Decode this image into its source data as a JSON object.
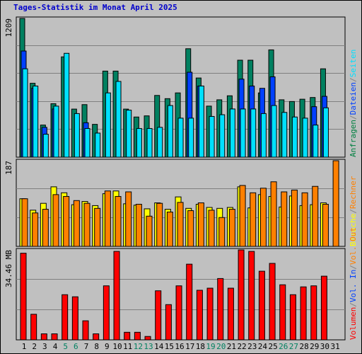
{
  "title": "Tages-Statistik im Monat April 2025",
  "chart_data": [
    {
      "type": "bar",
      "panel": "hits",
      "max_label": "1209",
      "ymax": 1209,
      "right_labels": [
        {
          "text": "Anfragen",
          "color": "#008040"
        },
        {
          "text": "/",
          "color": "#808080"
        },
        {
          "text": "Dateien",
          "color": "#0040ff"
        },
        {
          "text": "/",
          "color": "#808080"
        },
        {
          "text": "Seiten",
          "color": "#00e0ff"
        }
      ],
      "categories": [
        "1",
        "2",
        "3",
        "4",
        "5",
        "6",
        "7",
        "8",
        "9",
        "10",
        "11",
        "12",
        "13",
        "14",
        "15",
        "16",
        "17",
        "18",
        "19",
        "20",
        "21",
        "22",
        "23",
        "24",
        "25",
        "26",
        "27",
        "28",
        "29",
        "30",
        "31"
      ],
      "series": [
        {
          "key": "anfragen",
          "color": "#008060",
          "values": [
            1209,
            644,
            280,
            466,
            874,
            419,
            458,
            286,
            750,
            750,
            419,
            350,
            360,
            538,
            510,
            560,
            945,
            690,
            445,
            500,
            535,
            845,
            845,
            560,
            935,
            500,
            485,
            505,
            520,
            770,
            0
          ]
        },
        {
          "key": "dateien",
          "color": "#0040ff",
          "values": [
            925,
            600,
            260,
            420,
            0,
            0,
            300,
            0,
            0,
            0,
            0,
            0,
            0,
            0,
            0,
            0,
            740,
            620,
            0,
            0,
            0,
            680,
            620,
            600,
            700,
            0,
            0,
            0,
            440,
            530,
            0
          ]
        },
        {
          "key": "seiten",
          "color": "#00e0ff",
          "values": [
            770,
            620,
            200,
            445,
            905,
            380,
            250,
            210,
            560,
            660,
            410,
            250,
            250,
            260,
            450,
            340,
            340,
            620,
            355,
            370,
            420,
            420,
            420,
            380,
            450,
            390,
            350,
            340,
            280,
            430,
            0
          ]
        }
      ]
    },
    {
      "type": "bar",
      "panel": "visits",
      "max_label": "187",
      "ymax": 187,
      "right_labels": [
        {
          "text": "Besuche",
          "color": "#ffff00"
        },
        {
          "text": "/",
          "color": "#808080"
        },
        {
          "text": "Rechner",
          "color": "#ff8000"
        }
      ],
      "categories": [
        "1",
        "2",
        "3",
        "4",
        "5",
        "6",
        "7",
        "8",
        "9",
        "10",
        "11",
        "12",
        "13",
        "14",
        "15",
        "16",
        "17",
        "18",
        "19",
        "20",
        "21",
        "22",
        "23",
        "24",
        "25",
        "26",
        "27",
        "28",
        "29",
        "30",
        "31"
      ],
      "series": [
        {
          "key": "besuche",
          "color": "#ffff00",
          "values": [
            104,
            79,
            94,
            130,
            117,
            91,
            98,
            89,
            115,
            121,
            93,
            90,
            82,
            95,
            81,
            108,
            83,
            92,
            85,
            83,
            85,
            130,
            84,
            113,
            109,
            86,
            110,
            89,
            91,
            95,
            0
          ]
        },
        {
          "key": "rechner",
          "color": "#ff8000",
          "values": [
            104,
            73,
            81,
            113,
            109,
            100,
            94,
            83,
            121,
            109,
            119,
            92,
            66,
            94,
            75,
            96,
            78,
            95,
            79,
            63,
            81,
            133,
            117,
            127,
            141,
            119,
            123,
            117,
            131,
            92,
            187
          ]
        }
      ]
    },
    {
      "type": "bar",
      "panel": "volume",
      "max_label": "34.46 MB",
      "ymax": 34.46,
      "right_labels": [
        {
          "text": "Volumen",
          "color": "#ff0000"
        },
        {
          "text": "/",
          "color": "#808080"
        },
        {
          "text": "Vol. In",
          "color": "#0040ff"
        },
        {
          "text": "/",
          "color": "#808080"
        },
        {
          "text": "Vol. Out",
          "color": "#ff8000"
        }
      ],
      "categories": [
        "1",
        "2",
        "3",
        "4",
        "5",
        "6",
        "7",
        "8",
        "9",
        "10",
        "11",
        "12",
        "13",
        "14",
        "15",
        "16",
        "17",
        "18",
        "19",
        "20",
        "21",
        "22",
        "23",
        "24",
        "25",
        "26",
        "27",
        "28",
        "29",
        "30",
        "31"
      ],
      "series": [
        {
          "key": "volumen",
          "color": "#ff0000",
          "values": [
            33.2,
            9.8,
            2.3,
            2.3,
            17.3,
            16.5,
            7.3,
            2.3,
            20.7,
            33.9,
            2.9,
            2.9,
            1.3,
            18.8,
            13.5,
            20.7,
            29.0,
            19.0,
            19.8,
            23.5,
            19.8,
            34.46,
            33.9,
            26.3,
            29.3,
            21.1,
            17.3,
            20.3,
            20.7,
            24.4,
            0
          ]
        }
      ]
    }
  ],
  "x_labels": [
    {
      "text": "1",
      "color": "#000000"
    },
    {
      "text": "2",
      "color": "#000000"
    },
    {
      "text": "3",
      "color": "#000000"
    },
    {
      "text": "4",
      "color": "#000000"
    },
    {
      "text": "5",
      "color": "#008060"
    },
    {
      "text": "6",
      "color": "#008060"
    },
    {
      "text": "7",
      "color": "#000000"
    },
    {
      "text": "8",
      "color": "#000000"
    },
    {
      "text": "9",
      "color": "#000000"
    },
    {
      "text": "10",
      "color": "#000000"
    },
    {
      "text": "11",
      "color": "#000000"
    },
    {
      "text": "12",
      "color": "#008060"
    },
    {
      "text": "13",
      "color": "#008060"
    },
    {
      "text": "14",
      "color": "#000000"
    },
    {
      "text": "15",
      "color": "#000000"
    },
    {
      "text": "16",
      "color": "#000000"
    },
    {
      "text": "17",
      "color": "#000000"
    },
    {
      "text": "18",
      "color": "#000000"
    },
    {
      "text": "19",
      "color": "#008060"
    },
    {
      "text": "20",
      "color": "#008060"
    },
    {
      "text": "21",
      "color": "#000000"
    },
    {
      "text": "22",
      "color": "#000000"
    },
    {
      "text": "23",
      "color": "#000000"
    },
    {
      "text": "24",
      "color": "#000000"
    },
    {
      "text": "25",
      "color": "#000000"
    },
    {
      "text": "26",
      "color": "#008060"
    },
    {
      "text": "27",
      "color": "#008060"
    },
    {
      "text": "28",
      "color": "#000000"
    },
    {
      "text": "29",
      "color": "#000000"
    },
    {
      "text": "30",
      "color": "#000000"
    },
    {
      "text": "31",
      "color": "#000000"
    }
  ]
}
